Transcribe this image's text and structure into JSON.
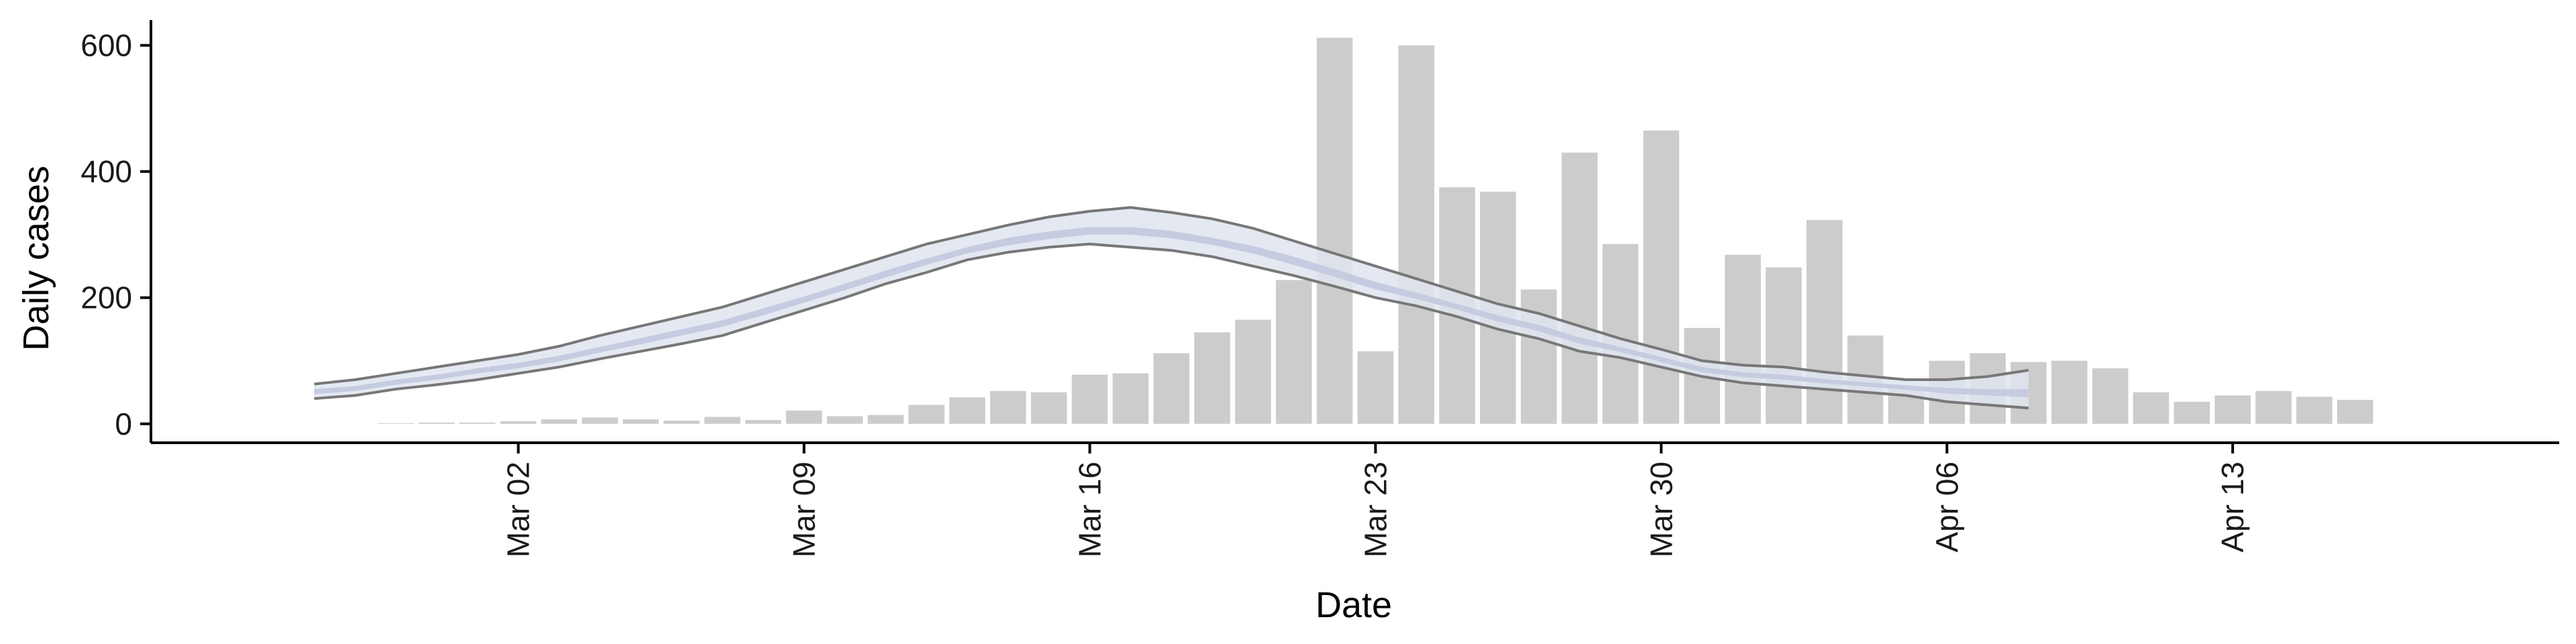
{
  "chart_data": {
    "type": "bar",
    "title": "",
    "xlabel": "Date",
    "ylabel": "Daily cases",
    "ylim": [
      -30,
      640
    ],
    "xlim": [
      "2020-02-22",
      "2020-04-21"
    ],
    "grid": false,
    "legend": "none",
    "yticks": [
      0,
      200,
      400,
      600
    ],
    "xticks": [
      {
        "date": "2020-03-02",
        "label": "Mar 02"
      },
      {
        "date": "2020-03-09",
        "label": "Mar 09"
      },
      {
        "date": "2020-03-16",
        "label": "Mar 16"
      },
      {
        "date": "2020-03-23",
        "label": "Mar 23"
      },
      {
        "date": "2020-03-30",
        "label": "Mar 30"
      },
      {
        "date": "2020-04-06",
        "label": "Apr 06"
      },
      {
        "date": "2020-04-13",
        "label": "Apr 13"
      }
    ],
    "bars": {
      "name": "",
      "color": "#cccccc",
      "dates": [
        "2020-02-26",
        "2020-02-27",
        "2020-02-28",
        "2020-02-29",
        "2020-03-01",
        "2020-03-02",
        "2020-03-03",
        "2020-03-04",
        "2020-03-05",
        "2020-03-06",
        "2020-03-07",
        "2020-03-08",
        "2020-03-09",
        "2020-03-10",
        "2020-03-11",
        "2020-03-12",
        "2020-03-13",
        "2020-03-14",
        "2020-03-15",
        "2020-03-16",
        "2020-03-17",
        "2020-03-18",
        "2020-03-19",
        "2020-03-20",
        "2020-03-21",
        "2020-03-22",
        "2020-03-23",
        "2020-03-24",
        "2020-03-25",
        "2020-03-26",
        "2020-03-27",
        "2020-03-28",
        "2020-03-29",
        "2020-03-30",
        "2020-03-31",
        "2020-04-01",
        "2020-04-02",
        "2020-04-03",
        "2020-04-04",
        "2020-04-05",
        "2020-04-06",
        "2020-04-07",
        "2020-04-08",
        "2020-04-09",
        "2020-04-10",
        "2020-04-11",
        "2020-04-12",
        "2020-04-13",
        "2020-04-14",
        "2020-04-15",
        "2020-04-16",
        "2020-04-17",
        "2020-04-18"
      ],
      "values": [
        0,
        0,
        1,
        2,
        2,
        4,
        7,
        10,
        7,
        5,
        11,
        6,
        21,
        12,
        14,
        30,
        42,
        52,
        50,
        78,
        80,
        112,
        145,
        165,
        228,
        612,
        115,
        600,
        375,
        368,
        213,
        430,
        285,
        465,
        152,
        268,
        248,
        323,
        140,
        58,
        100,
        112,
        98,
        100,
        88,
        50,
        35,
        45,
        52,
        43,
        38,
        0,
        0
      ]
    },
    "estimate": {
      "name": "",
      "dates": [
        "2020-02-26",
        "2020-02-27",
        "2020-02-28",
        "2020-02-29",
        "2020-03-01",
        "2020-03-02",
        "2020-03-03",
        "2020-03-04",
        "2020-03-05",
        "2020-03-06",
        "2020-03-07",
        "2020-03-08",
        "2020-03-09",
        "2020-03-10",
        "2020-03-11",
        "2020-03-12",
        "2020-03-13",
        "2020-03-14",
        "2020-03-15",
        "2020-03-16",
        "2020-03-17",
        "2020-03-18",
        "2020-03-19",
        "2020-03-20",
        "2020-03-21",
        "2020-03-22",
        "2020-03-23",
        "2020-03-24",
        "2020-03-25",
        "2020-03-26",
        "2020-03-27",
        "2020-03-28",
        "2020-03-29",
        "2020-03-30",
        "2020-03-31",
        "2020-04-01",
        "2020-04-02",
        "2020-04-03",
        "2020-04-04",
        "2020-04-05",
        "2020-04-06",
        "2020-04-07",
        "2020-04-08"
      ],
      "upper90": [
        63,
        70,
        80,
        90,
        100,
        110,
        123,
        140,
        155,
        170,
        185,
        205,
        225,
        245,
        265,
        285,
        300,
        315,
        328,
        337,
        343,
        335,
        325,
        310,
        290,
        270,
        250,
        230,
        210,
        190,
        175,
        155,
        135,
        118,
        100,
        93,
        90,
        82,
        76,
        70,
        70,
        75,
        85
      ],
      "lower90": [
        40,
        45,
        55,
        62,
        70,
        80,
        90,
        103,
        115,
        127,
        140,
        160,
        180,
        200,
        222,
        240,
        260,
        272,
        280,
        285,
        280,
        275,
        265,
        250,
        235,
        218,
        200,
        187,
        170,
        150,
        135,
        115,
        105,
        90,
        75,
        65,
        60,
        55,
        50,
        45,
        35,
        30,
        25
      ],
      "upper50": [
        55,
        60,
        70,
        78,
        88,
        97,
        108,
        122,
        136,
        150,
        164,
        183,
        202,
        222,
        243,
        262,
        280,
        295,
        305,
        312,
        312,
        306,
        295,
        282,
        265,
        245,
        225,
        208,
        190,
        172,
        157,
        137,
        122,
        106,
        90,
        82,
        78,
        71,
        66,
        61,
        57,
        55,
        55
      ],
      "lower50": [
        47,
        52,
        62,
        70,
        80,
        88,
        99,
        113,
        126,
        140,
        154,
        172,
        192,
        212,
        232,
        252,
        270,
        283,
        293,
        300,
        300,
        294,
        284,
        270,
        252,
        233,
        213,
        198,
        181,
        162,
        147,
        127,
        114,
        98,
        82,
        74,
        70,
        64,
        59,
        54,
        48,
        45,
        42
      ],
      "band90_color": "#dfe4ef",
      "band50_color": "#c3cadf",
      "line_color": "#777777"
    }
  }
}
